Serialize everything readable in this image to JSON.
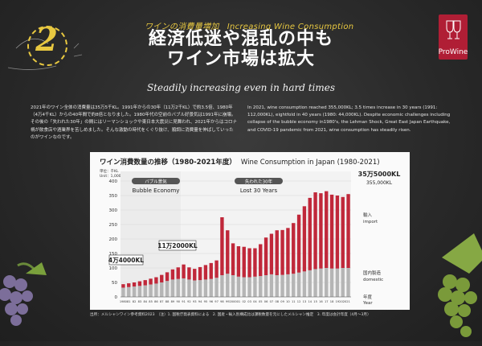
{
  "header": {
    "number": "2",
    "topic_ja": "ワインの消費量増加",
    "topic_en": "Increasing Wine Consumption",
    "title_line1": "経済低迷や混乱の中も",
    "title_line2": "ワイン市場は拡大",
    "subtitle": "Steadily increasing even in hard times",
    "brand": "ProWine"
  },
  "body": {
    "ja": "2021年のワイン全体の消費量は35万5千KL。1991年からの30年（11万2千KL）で約3.5倍、1980年（4万4千KL）からの40年間で約8倍となりました。1980年代の空前のバブル好景気は1991年に崩壊。その後の「失われた30年」の間にはリーマンショックや東日本大震災に見舞われ、2021年からはコロナ禍が飲食店や酒業界を苦しめました。そんな激動の時代をくぐり抜け、順調に消費量を伸ばしていったのがワインなのです。",
    "en": "In 2021, wine consumption reached 355,000KL; 3.5 times increase in 30 years (1991: 112,000KL), eightfold in 40 years (1980: 44,000KL). Despite economic challenges including collapse of the bubble economy in1980's, the Lehman Shock, Great East Japan Earthquake, and COVID-19 pandemic from 2021, wine consumption has steadily risen."
  },
  "chart_title_ja": "ワイン消費数量の推移（1980-2021年度）",
  "chart_title_en": "Wine Consumption in Japan (1980-2021)",
  "unit_ja": "単位：千KL",
  "unit_en": "Unit：1,000KL",
  "source": "出所：メルシャンワイン参考資料2023　（注）1. 国税庁発表資料による　2. 国産・輸入別構成比は課税数量を元にしたメルシャン推定　3. 年度は会計年度（4月～3月）",
  "chart_data": {
    "type": "bar",
    "stacked": true,
    "categories": [
      "1980",
      "81",
      "82",
      "83",
      "84",
      "85",
      "86",
      "87",
      "88",
      "89",
      "90",
      "91",
      "92",
      "93",
      "94",
      "95",
      "96",
      "97",
      "98",
      "99",
      "2000",
      "01",
      "02",
      "03",
      "04",
      "05",
      "06",
      "07",
      "08",
      "09",
      "10",
      "11",
      "12",
      "13",
      "14",
      "15",
      "16",
      "17",
      "18",
      "19",
      "2020",
      "21"
    ],
    "series": [
      {
        "name": "国内製造 domestic",
        "color": "#b5b5b5",
        "values": [
          32,
          34,
          36,
          38,
          40,
          43,
          46,
          50,
          55,
          60,
          62,
          64,
          60,
          57,
          58,
          60,
          62,
          66,
          75,
          80,
          75,
          70,
          68,
          68,
          70,
          72,
          75,
          78,
          75,
          76,
          78,
          80,
          84,
          88,
          92,
          96,
          98,
          100,
          98,
          98,
          100,
          100
        ]
      },
      {
        "name": "輸入 import",
        "color": "#c0283a",
        "values": [
          12,
          13,
          14,
          16,
          18,
          20,
          22,
          26,
          30,
          35,
          40,
          48,
          42,
          40,
          45,
          50,
          55,
          60,
          200,
          150,
          110,
          105,
          105,
          100,
          98,
          110,
          130,
          140,
          155,
          155,
          160,
          175,
          200,
          225,
          250,
          265,
          260,
          265,
          255,
          252,
          245,
          255
        ]
      }
    ],
    "ylim": [
      0,
      400
    ],
    "yticks": [
      0,
      50,
      100,
      150,
      200,
      250,
      300,
      350,
      400
    ],
    "eras": [
      {
        "label_ja": "バブル景気",
        "label_en": "Bubble Economy"
      },
      {
        "label_ja": "失われた30年",
        "label_en": "Lost 30 Years"
      }
    ],
    "callouts": [
      {
        "text": "4万4000",
        "unit": "KL"
      },
      {
        "text": "11万2000",
        "unit": "KL"
      },
      {
        "text": "35万5000",
        "unit": "KL",
        "sub": "355,000KL"
      }
    ],
    "legend": [
      {
        "ja": "輸入",
        "en": "import"
      },
      {
        "ja": "国内製造",
        "en": "domestic"
      }
    ],
    "axis_label_ja": "年度",
    "axis_label_en": "Year"
  }
}
